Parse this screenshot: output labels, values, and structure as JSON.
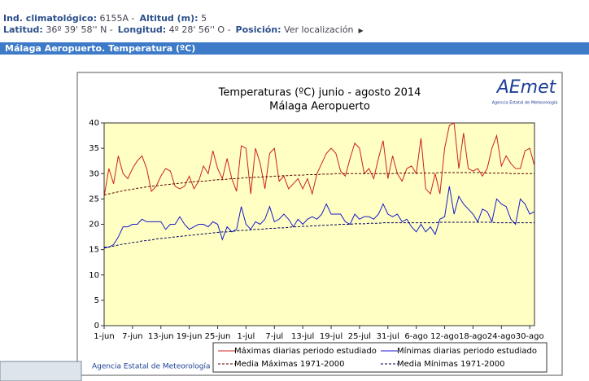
{
  "header": {
    "ind_label": "Ind. climatológico:",
    "ind_value": "6155A -",
    "alt_label": "Altitud (m):",
    "alt_value": "5",
    "lat_label": "Latitud:",
    "lat_value": "36º 39' 58'' N -",
    "lon_label": "Longitud:",
    "lon_value": "4º 28' 56'' O -",
    "pos_label": "Posición:",
    "pos_link": "Ver localización",
    "section": "Málaga Aeropuerto. Temperatura (ºC)"
  },
  "logo": {
    "name": "AEmet",
    "agency": "Agencia Estatal de Meteorología"
  },
  "footer": "Agencia Estatal de Meteorología",
  "chart_data": {
    "type": "line",
    "title": "Temperaturas (ºC) junio - agosto 2014",
    "subtitle": "Málaga Aeropuerto",
    "categories": [
      "1-jun",
      null,
      null,
      null,
      null,
      null,
      "7-jun",
      null,
      null,
      null,
      null,
      null,
      "13-jun",
      null,
      null,
      null,
      null,
      null,
      "19-jun",
      null,
      null,
      null,
      null,
      null,
      "25-jun",
      null,
      null,
      null,
      null,
      null,
      "1-jul",
      null,
      null,
      null,
      null,
      null,
      "7-jul",
      null,
      null,
      null,
      null,
      null,
      "13-jul",
      null,
      null,
      null,
      null,
      null,
      "19-jul",
      null,
      null,
      null,
      null,
      null,
      "25-jul",
      null,
      null,
      null,
      null,
      null,
      "31-jul",
      null,
      null,
      null,
      null,
      null,
      "6-ago",
      null,
      null,
      null,
      null,
      null,
      "12-ago",
      null,
      null,
      null,
      null,
      null,
      "18-ago",
      null,
      null,
      null,
      null,
      null,
      "24-ago",
      null,
      null,
      null,
      null,
      null,
      "30-ago",
      null
    ],
    "ylim": [
      0,
      40
    ],
    "yticks": [
      0,
      5,
      10,
      15,
      20,
      25,
      30,
      35,
      40
    ],
    "plot_background": "#ffffc4",
    "series": [
      {
        "name": "Máximas diarias periodo estudiado",
        "color": "#cc2020",
        "dashed": false,
        "values": [
          25.5,
          31,
          28,
          33.5,
          30,
          29,
          31,
          32.5,
          33.5,
          31,
          26.5,
          27.5,
          29.5,
          31,
          30.5,
          27.5,
          27,
          27.5,
          29.5,
          27,
          28.5,
          31.5,
          30,
          34.5,
          31,
          29,
          33,
          29,
          26.5,
          35.5,
          35,
          26,
          35,
          32,
          27,
          34,
          35,
          28.5,
          29.5,
          27,
          28,
          29,
          27,
          29,
          26,
          30,
          32,
          34,
          35,
          34,
          30.5,
          29.5,
          33,
          36,
          35,
          30,
          31,
          29,
          33,
          36.5,
          29,
          33.5,
          30,
          28.5,
          31,
          31.5,
          30,
          37,
          27,
          26,
          30,
          26,
          35,
          39.5,
          40,
          31,
          38,
          31,
          30.5,
          31,
          29.5,
          31,
          35,
          37.5,
          31.5,
          33.5,
          32,
          31,
          31,
          34.5,
          35,
          31.5
        ]
      },
      {
        "name": "Mínimas diarias periodo estudiado",
        "color": "#1a1acc",
        "dashed": false,
        "values": [
          15.5,
          15.5,
          16,
          17.5,
          19.5,
          19.5,
          20,
          20,
          21,
          20.5,
          20.5,
          20.5,
          20.5,
          19,
          20,
          20,
          21.5,
          20,
          19,
          19.5,
          20,
          20,
          19.5,
          20.5,
          20,
          17,
          19.5,
          18.5,
          19,
          23.5,
          20,
          19,
          20.5,
          20,
          21,
          23.5,
          20.5,
          21,
          22,
          21,
          19.5,
          21,
          20,
          21,
          21.5,
          21,
          22,
          24,
          22,
          22,
          22,
          20.5,
          20,
          22,
          21,
          21.5,
          21.5,
          21,
          22,
          24,
          22,
          21.5,
          22,
          20.5,
          21,
          19.5,
          18.5,
          20,
          18.5,
          19.5,
          18,
          21,
          21.5,
          27.5,
          22,
          25.5,
          24,
          23,
          22,
          20.5,
          23,
          22.5,
          20.5,
          25,
          24,
          23.5,
          21,
          20,
          25,
          24,
          22,
          22.5
        ]
      },
      {
        "name": "Media Máximas 1971-2000",
        "color": "#5a0000",
        "dashed": true,
        "values": [
          25.8,
          26.0,
          26.2,
          26.4,
          26.6,
          26.8,
          26.9,
          27.1,
          27.2,
          27.4,
          27.5,
          27.6,
          27.7,
          27.8,
          27.9,
          28.0,
          28.1,
          28.2,
          28.3,
          28.4,
          28.5,
          28.5,
          28.6,
          28.7,
          28.8,
          28.8,
          28.9,
          29.0,
          29.0,
          29.1,
          29.2,
          29.2,
          29.3,
          29.3,
          29.4,
          29.4,
          29.5,
          29.5,
          29.6,
          29.6,
          29.7,
          29.7,
          29.7,
          29.8,
          29.8,
          29.8,
          29.9,
          29.9,
          29.9,
          30.0,
          30.0,
          30.0,
          30.0,
          30.0,
          30.0,
          30.0,
          30.0,
          30.0,
          30.0,
          30.0,
          30.0,
          30.0,
          30.1,
          30.1,
          30.1,
          30.1,
          30.1,
          30.1,
          30.1,
          30.1,
          30.1,
          30.2,
          30.2,
          30.2,
          30.2,
          30.2,
          30.2,
          30.2,
          30.2,
          30.2,
          30.2,
          30.1,
          30.1,
          30.1,
          30.1,
          30.1,
          30.0,
          30.0,
          30.0,
          30.0,
          30.0,
          30.0
        ]
      },
      {
        "name": "Media Mínimas 1971-2000",
        "color": "#00005a",
        "dashed": true,
        "values": [
          15.3,
          15.5,
          15.7,
          15.9,
          16.1,
          16.2,
          16.4,
          16.5,
          16.7,
          16.8,
          16.9,
          17.1,
          17.2,
          17.3,
          17.4,
          17.5,
          17.6,
          17.7,
          17.8,
          17.9,
          18.0,
          18.1,
          18.2,
          18.3,
          18.4,
          18.5,
          18.5,
          18.6,
          18.7,
          18.8,
          18.8,
          18.9,
          19.0,
          19.0,
          19.1,
          19.2,
          19.2,
          19.3,
          19.3,
          19.4,
          19.5,
          19.5,
          19.6,
          19.6,
          19.7,
          19.7,
          19.8,
          19.8,
          19.9,
          19.9,
          20.0,
          20.0,
          20.0,
          20.1,
          20.1,
          20.1,
          20.2,
          20.2,
          20.2,
          20.3,
          20.3,
          20.3,
          20.3,
          20.3,
          20.3,
          20.3,
          20.3,
          20.3,
          20.3,
          20.3,
          20.3,
          20.4,
          20.4,
          20.4,
          20.4,
          20.4,
          20.4,
          20.4,
          20.4,
          20.4,
          20.4,
          20.4,
          20.4,
          20.3,
          20.3,
          20.3,
          20.3,
          20.3,
          20.3,
          20.3,
          20.3,
          20.3
        ]
      }
    ]
  }
}
